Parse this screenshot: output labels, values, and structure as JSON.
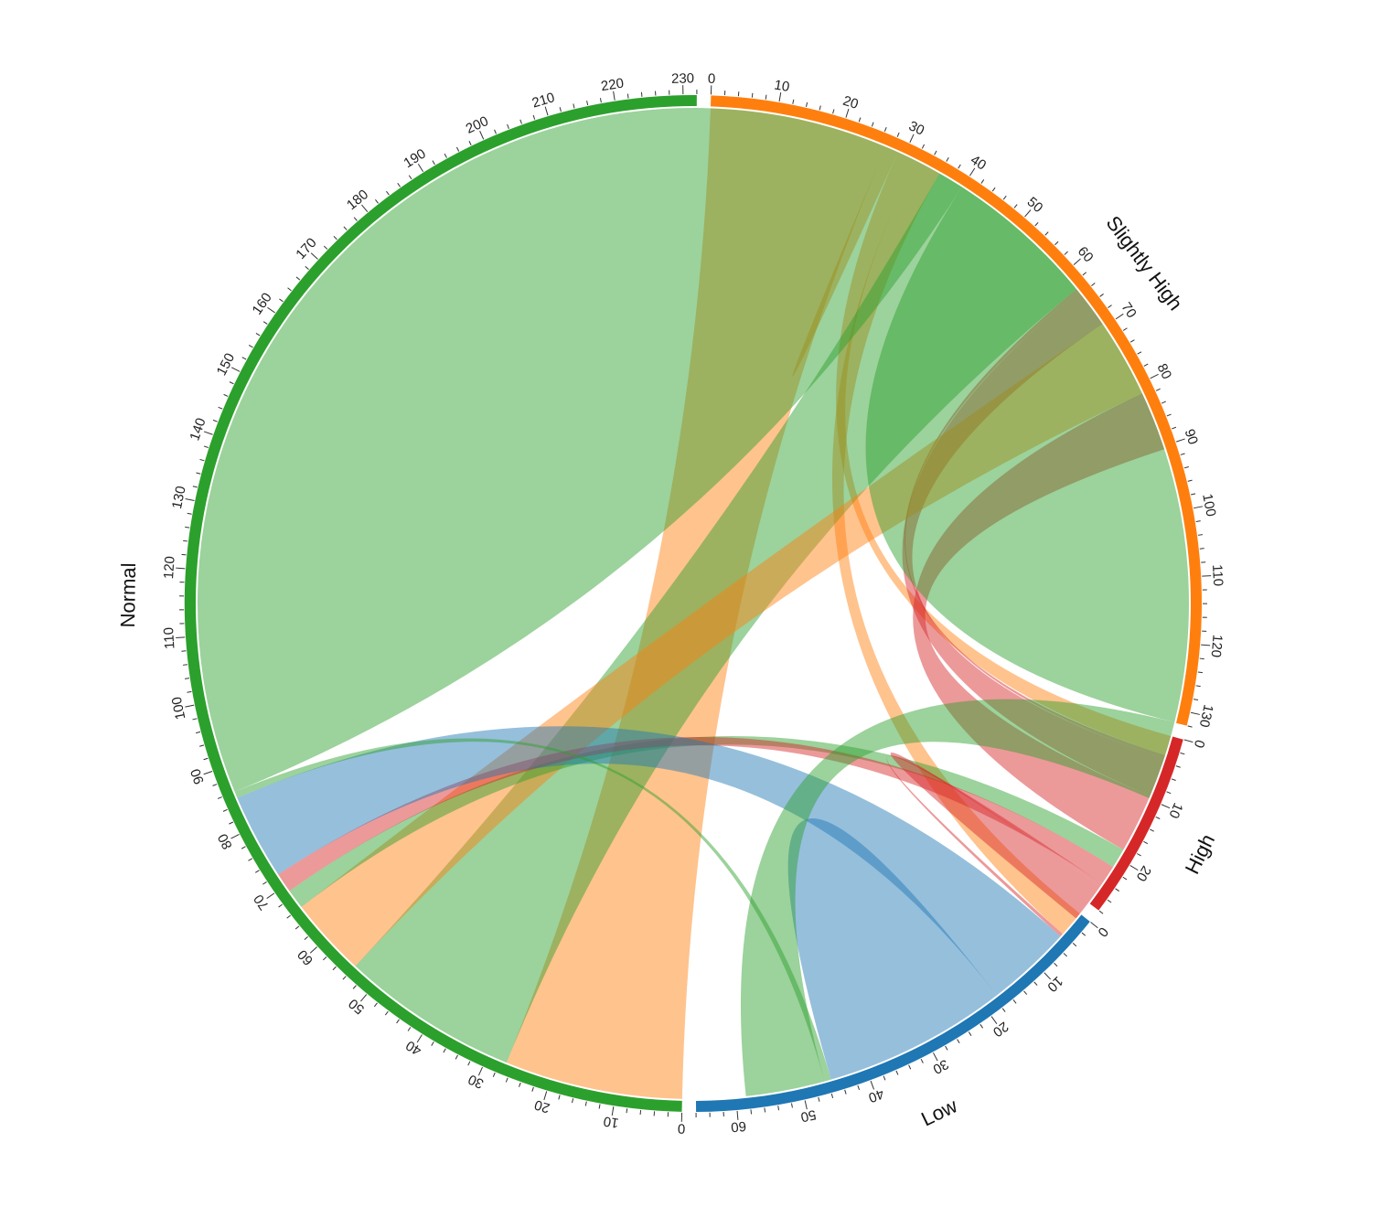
{
  "chart_data": {
    "type": "chord",
    "title": "",
    "sectors": [
      {
        "name": "Slightly High",
        "total": 132,
        "color": "#ff7f0e",
        "tick_step": 10
      },
      {
        "name": "High",
        "total": 28,
        "color": "#d62728",
        "tick_step": 10
      },
      {
        "name": "Low",
        "total": 66,
        "color": "#1f77b4",
        "tick_step": 10
      },
      {
        "name": "Normal",
        "total": 232,
        "color": "#2ca02c",
        "tick_step": 10
      }
    ],
    "links": [
      {
        "from": "Slightly High",
        "to": "Normal",
        "value": 27
      },
      {
        "from": "Slightly High",
        "to": "Slightly High",
        "value": 1
      },
      {
        "from": "Slightly High",
        "to": "High",
        "value": 3
      },
      {
        "from": "Slightly High",
        "to": "Low",
        "value": 4
      },
      {
        "from": "Normal",
        "to": "Slightly High",
        "value": 27
      },
      {
        "from": "High",
        "to": "Slightly High",
        "value": 0.5
      },
      {
        "from": "High",
        "to": "Slightly High",
        "value": 6
      },
      {
        "from": "Slightly High",
        "to": "Normal",
        "value": 12
      },
      {
        "from": "High",
        "to": "Slightly High",
        "value": 9
      },
      {
        "from": "Normal",
        "to": "High",
        "value": 3
      },
      {
        "from": "High",
        "to": "Normal",
        "value": 3
      },
      {
        "from": "High",
        "to": "Low",
        "value": 0.5
      },
      {
        "from": "High",
        "to": "High",
        "value": 3
      },
      {
        "from": "Low",
        "to": "Normal",
        "value": 13
      },
      {
        "from": "Low",
        "to": "Low",
        "value": 14
      },
      {
        "from": "Normal",
        "to": "Low",
        "value": 1
      },
      {
        "from": "Normal",
        "to": "Normal",
        "value": 94
      },
      {
        "from": "Normal",
        "to": "Normal",
        "value": 46
      },
      {
        "from": "Normal",
        "to": "Low",
        "value": 12
      }
    ]
  }
}
